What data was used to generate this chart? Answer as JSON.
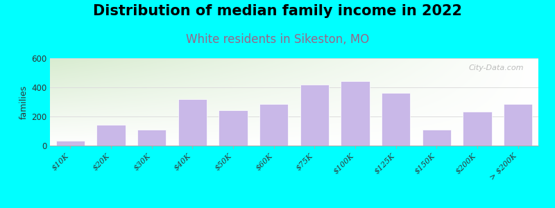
{
  "title": "Distribution of median family income in 2022",
  "subtitle": "White residents in Sikeston, MO",
  "categories": [
    "$10K",
    "$20K",
    "$30K",
    "$40K",
    "$50K",
    "$60K",
    "$75K",
    "$100K",
    "$125K",
    "$150K",
    "$200K",
    "> $200K"
  ],
  "values": [
    35,
    145,
    110,
    320,
    245,
    285,
    420,
    445,
    360,
    110,
    235,
    285
  ],
  "bar_color": "#c9b8e8",
  "background_outer": "#00FFFF",
  "background_inner_top_left": "#d8ecd0",
  "background_inner_bottom_right": "#ffffff",
  "title_fontsize": 15,
  "subtitle_fontsize": 12,
  "subtitle_color": "#996688",
  "ylabel": "families",
  "ylim": [
    0,
    600
  ],
  "yticks": [
    0,
    200,
    400,
    600
  ],
  "grid_color": "#dddddd",
  "watermark": "City-Data.com"
}
